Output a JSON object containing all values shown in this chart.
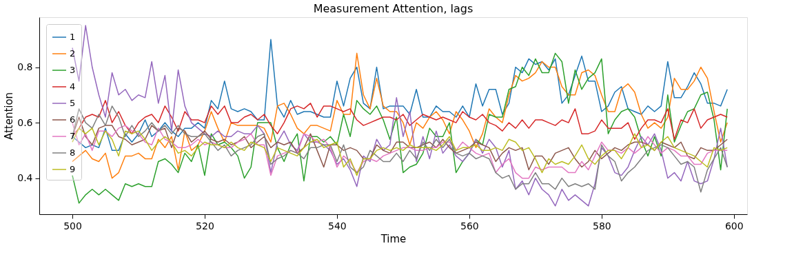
{
  "chart_data": {
    "type": "line",
    "title": "Measurement Attention, lags",
    "xlabel": "Time",
    "ylabel": "Attention",
    "x": [
      500,
      501,
      502,
      503,
      504,
      505,
      506,
      507,
      508,
      509,
      510,
      511,
      512,
      513,
      514,
      515,
      516,
      517,
      518,
      519,
      520,
      521,
      522,
      523,
      524,
      525,
      526,
      527,
      528,
      529,
      530,
      531,
      532,
      533,
      534,
      535,
      536,
      537,
      538,
      539,
      540,
      541,
      542,
      543,
      544,
      545,
      546,
      547,
      548,
      549,
      550,
      551,
      552,
      553,
      554,
      555,
      556,
      557,
      558,
      559,
      560,
      561,
      562,
      563,
      564,
      565,
      566,
      567,
      568,
      569,
      570,
      571,
      572,
      573,
      574,
      575,
      576,
      577,
      578,
      579,
      580,
      581,
      582,
      583,
      584,
      585,
      586,
      587,
      588,
      589,
      590,
      591,
      592,
      593,
      594,
      595,
      596,
      597,
      598,
      599
    ],
    "xlim": [
      495,
      602
    ],
    "xticks": [
      500,
      520,
      540,
      560,
      580,
      600
    ],
    "ylim": [
      0.27,
      0.98
    ],
    "yticks": [
      0.4,
      0.6,
      0.8
    ],
    "grid": false,
    "legend": "top left",
    "line_style": "solid",
    "marker": "none",
    "series": [
      {
        "name": "1",
        "color": "#1f77b4",
        "values": [
          0.55,
          0.53,
          0.51,
          0.52,
          0.51,
          0.58,
          0.5,
          0.5,
          0.56,
          0.53,
          0.56,
          0.61,
          0.55,
          0.57,
          0.6,
          0.57,
          0.55,
          0.58,
          0.58,
          0.6,
          0.58,
          0.68,
          0.65,
          0.75,
          0.65,
          0.64,
          0.65,
          0.64,
          0.61,
          0.61,
          0.9,
          0.66,
          0.62,
          0.68,
          0.63,
          0.64,
          0.64,
          0.63,
          0.62,
          0.62,
          0.75,
          0.66,
          0.76,
          0.8,
          0.67,
          0.65,
          0.8,
          0.65,
          0.66,
          0.66,
          0.66,
          0.63,
          0.72,
          0.62,
          0.62,
          0.66,
          0.64,
          0.64,
          0.62,
          0.66,
          0.62,
          0.74,
          0.66,
          0.72,
          0.72,
          0.63,
          0.67,
          0.8,
          0.78,
          0.83,
          0.81,
          0.82,
          0.79,
          0.83,
          0.67,
          0.7,
          0.77,
          0.84,
          0.75,
          0.75,
          0.64,
          0.66,
          0.71,
          0.73,
          0.65,
          0.64,
          0.63,
          0.66,
          0.64,
          0.66,
          0.82,
          0.69,
          0.69,
          0.73,
          0.78,
          0.74,
          0.67,
          0.67,
          0.66,
          0.72
        ]
      },
      {
        "name": "2",
        "color": "#ff7f0e",
        "values": [
          0.46,
          0.48,
          0.5,
          0.47,
          0.46,
          0.49,
          0.4,
          0.42,
          0.48,
          0.48,
          0.49,
          0.47,
          0.47,
          0.54,
          0.51,
          0.55,
          0.43,
          0.57,
          0.5,
          0.52,
          0.57,
          0.64,
          0.58,
          0.53,
          0.6,
          0.59,
          0.59,
          0.59,
          0.59,
          0.58,
          0.53,
          0.66,
          0.67,
          0.63,
          0.58,
          0.56,
          0.59,
          0.59,
          0.58,
          0.57,
          0.68,
          0.63,
          0.63,
          0.85,
          0.7,
          0.65,
          0.76,
          0.66,
          0.64,
          0.64,
          0.6,
          0.52,
          0.6,
          0.58,
          0.62,
          0.64,
          0.61,
          0.56,
          0.64,
          0.61,
          0.57,
          0.51,
          0.56,
          0.65,
          0.62,
          0.6,
          0.7,
          0.77,
          0.75,
          0.76,
          0.78,
          0.82,
          0.8,
          0.8,
          0.73,
          0.7,
          0.7,
          0.78,
          0.79,
          0.77,
          0.7,
          0.64,
          0.64,
          0.72,
          0.74,
          0.71,
          0.63,
          0.58,
          0.6,
          0.58,
          0.62,
          0.76,
          0.72,
          0.72,
          0.75,
          0.8,
          0.76,
          0.64,
          0.53,
          0.6
        ]
      },
      {
        "name": "3",
        "color": "#2ca02c",
        "values": [
          0.41,
          0.31,
          0.34,
          0.36,
          0.34,
          0.36,
          0.34,
          0.32,
          0.38,
          0.37,
          0.38,
          0.37,
          0.37,
          0.46,
          0.47,
          0.45,
          0.42,
          0.49,
          0.46,
          0.52,
          0.41,
          0.56,
          0.52,
          0.53,
          0.51,
          0.48,
          0.4,
          0.44,
          0.6,
          0.6,
          0.6,
          0.51,
          0.46,
          0.52,
          0.56,
          0.39,
          0.55,
          0.55,
          0.53,
          0.55,
          0.52,
          0.63,
          0.55,
          0.68,
          0.65,
          0.63,
          0.66,
          0.61,
          0.54,
          0.62,
          0.42,
          0.44,
          0.45,
          0.49,
          0.58,
          0.55,
          0.55,
          0.6,
          0.42,
          0.46,
          0.49,
          0.54,
          0.52,
          0.63,
          0.62,
          0.62,
          0.72,
          0.73,
          0.8,
          0.77,
          0.83,
          0.78,
          0.78,
          0.85,
          0.82,
          0.67,
          0.79,
          0.72,
          0.76,
          0.78,
          0.83,
          0.56,
          0.61,
          0.64,
          0.65,
          0.62,
          0.54,
          0.48,
          0.55,
          0.48,
          0.7,
          0.53,
          0.59,
          0.64,
          0.65,
          0.7,
          0.71,
          0.61,
          0.43,
          0.65
        ]
      },
      {
        "name": "4",
        "color": "#d62728",
        "values": [
          0.55,
          0.58,
          0.62,
          0.63,
          0.62,
          0.68,
          0.6,
          0.64,
          0.59,
          0.56,
          0.6,
          0.62,
          0.63,
          0.6,
          0.66,
          0.62,
          0.57,
          0.64,
          0.61,
          0.61,
          0.6,
          0.66,
          0.63,
          0.66,
          0.6,
          0.6,
          0.62,
          0.63,
          0.61,
          0.63,
          0.59,
          0.56,
          0.6,
          0.65,
          0.66,
          0.65,
          0.67,
          0.62,
          0.66,
          0.66,
          0.65,
          0.64,
          0.65,
          0.61,
          0.59,
          0.6,
          0.61,
          0.62,
          0.62,
          0.61,
          0.63,
          0.59,
          0.61,
          0.63,
          0.62,
          0.61,
          0.62,
          0.61,
          0.6,
          0.64,
          0.62,
          0.61,
          0.63,
          0.6,
          0.59,
          0.57,
          0.6,
          0.58,
          0.61,
          0.58,
          0.61,
          0.61,
          0.6,
          0.59,
          0.61,
          0.6,
          0.65,
          0.56,
          0.56,
          0.57,
          0.61,
          0.58,
          0.58,
          0.58,
          0.6,
          0.54,
          0.58,
          0.61,
          0.61,
          0.6,
          0.65,
          0.54,
          0.61,
          0.6,
          0.65,
          0.58,
          0.61,
          0.62,
          0.63,
          0.62
        ]
      },
      {
        "name": "5",
        "color": "#9467bd",
        "values": [
          0.87,
          0.75,
          0.95,
          0.8,
          0.7,
          0.62,
          0.78,
          0.7,
          0.72,
          0.68,
          0.7,
          0.69,
          0.82,
          0.67,
          0.77,
          0.57,
          0.79,
          0.66,
          0.6,
          0.58,
          0.56,
          0.55,
          0.57,
          0.55,
          0.55,
          0.57,
          0.56,
          0.56,
          0.59,
          0.56,
          0.42,
          0.53,
          0.57,
          0.52,
          0.5,
          0.56,
          0.53,
          0.53,
          0.52,
          0.5,
          0.45,
          0.47,
          0.43,
          0.37,
          0.48,
          0.46,
          0.54,
          0.5,
          0.52,
          0.69,
          0.55,
          0.64,
          0.46,
          0.55,
          0.47,
          0.57,
          0.49,
          0.52,
          0.48,
          0.46,
          0.49,
          0.54,
          0.49,
          0.54,
          0.51,
          0.44,
          0.5,
          0.36,
          0.39,
          0.34,
          0.4,
          0.36,
          0.34,
          0.3,
          0.36,
          0.32,
          0.34,
          0.32,
          0.3,
          0.38,
          0.51,
          0.48,
          0.42,
          0.41,
          0.44,
          0.5,
          0.55,
          0.52,
          0.56,
          0.5,
          0.4,
          0.42,
          0.39,
          0.46,
          0.39,
          0.38,
          0.39,
          0.47,
          0.58,
          0.44
        ]
      },
      {
        "name": "6",
        "color": "#8c564b",
        "values": [
          0.55,
          0.62,
          0.55,
          0.52,
          0.58,
          0.59,
          0.59,
          0.55,
          0.54,
          0.52,
          0.53,
          0.54,
          0.59,
          0.57,
          0.58,
          0.51,
          0.58,
          0.57,
          0.53,
          0.55,
          0.57,
          0.54,
          0.53,
          0.54,
          0.52,
          0.53,
          0.55,
          0.51,
          0.53,
          0.55,
          0.51,
          0.53,
          0.52,
          0.53,
          0.49,
          0.51,
          0.56,
          0.5,
          0.44,
          0.52,
          0.52,
          0.5,
          0.51,
          0.5,
          0.47,
          0.47,
          0.52,
          0.5,
          0.49,
          0.53,
          0.53,
          0.51,
          0.51,
          0.52,
          0.53,
          0.51,
          0.54,
          0.51,
          0.49,
          0.5,
          0.51,
          0.53,
          0.52,
          0.51,
          0.46,
          0.49,
          0.51,
          0.5,
          0.51,
          0.43,
          0.48,
          0.48,
          0.45,
          0.49,
          0.5,
          0.51,
          0.47,
          0.44,
          0.46,
          0.5,
          0.47,
          0.49,
          0.51,
          0.5,
          0.52,
          0.53,
          0.53,
          0.52,
          0.5,
          0.53,
          0.52,
          0.51,
          0.53,
          0.48,
          0.47,
          0.51,
          0.5,
          0.5,
          0.52,
          0.54
        ]
      },
      {
        "name": "7",
        "color": "#e377c2",
        "values": [
          0.6,
          0.52,
          0.56,
          0.5,
          0.57,
          0.57,
          0.55,
          0.58,
          0.59,
          0.57,
          0.56,
          0.53,
          0.52,
          0.58,
          0.54,
          0.53,
          0.51,
          0.51,
          0.52,
          0.54,
          0.52,
          0.53,
          0.52,
          0.51,
          0.51,
          0.53,
          0.54,
          0.56,
          0.52,
          0.52,
          0.41,
          0.48,
          0.49,
          0.5,
          0.49,
          0.56,
          0.55,
          0.53,
          0.54,
          0.51,
          0.44,
          0.48,
          0.46,
          0.42,
          0.46,
          0.47,
          0.46,
          0.48,
          0.49,
          0.5,
          0.51,
          0.51,
          0.5,
          0.5,
          0.51,
          0.51,
          0.53,
          0.53,
          0.5,
          0.53,
          0.51,
          0.49,
          0.48,
          0.49,
          0.42,
          0.45,
          0.47,
          0.42,
          0.4,
          0.4,
          0.44,
          0.43,
          0.44,
          0.44,
          0.44,
          0.42,
          0.42,
          0.46,
          0.43,
          0.48,
          0.53,
          0.5,
          0.5,
          0.49,
          0.51,
          0.49,
          0.51,
          0.55,
          0.52,
          0.49,
          0.51,
          0.5,
          0.48,
          0.48,
          0.45,
          0.45,
          0.49,
          0.5,
          0.5,
          0.5
        ]
      },
      {
        "name": "8",
        "color": "#7f7f7f",
        "values": [
          0.55,
          0.65,
          0.6,
          0.58,
          0.63,
          0.59,
          0.66,
          0.62,
          0.55,
          0.59,
          0.55,
          0.57,
          0.6,
          0.57,
          0.59,
          0.56,
          0.59,
          0.56,
          0.55,
          0.55,
          0.56,
          0.53,
          0.5,
          0.52,
          0.48,
          0.5,
          0.51,
          0.52,
          0.55,
          0.56,
          0.45,
          0.47,
          0.48,
          0.5,
          0.49,
          0.47,
          0.51,
          0.51,
          0.52,
          0.52,
          0.46,
          0.52,
          0.44,
          0.42,
          0.44,
          0.5,
          0.48,
          0.46,
          0.46,
          0.49,
          0.46,
          0.5,
          0.47,
          0.53,
          0.5,
          0.54,
          0.51,
          0.54,
          0.49,
          0.48,
          0.49,
          0.47,
          0.48,
          0.47,
          0.42,
          0.4,
          0.41,
          0.36,
          0.38,
          0.38,
          0.42,
          0.38,
          0.38,
          0.36,
          0.4,
          0.37,
          0.38,
          0.37,
          0.38,
          0.36,
          0.52,
          0.48,
          0.46,
          0.39,
          0.42,
          0.44,
          0.47,
          0.5,
          0.51,
          0.52,
          0.51,
          0.48,
          0.45,
          0.46,
          0.44,
          0.35,
          0.43,
          0.47,
          0.51,
          0.44
        ]
      },
      {
        "name": "9",
        "color": "#bcbd22",
        "values": [
          0.53,
          0.58,
          0.56,
          0.58,
          0.52,
          0.57,
          0.54,
          0.48,
          0.57,
          0.56,
          0.57,
          0.54,
          0.5,
          0.53,
          0.55,
          0.53,
          0.49,
          0.5,
          0.48,
          0.51,
          0.53,
          0.52,
          0.52,
          0.51,
          0.53,
          0.51,
          0.5,
          0.53,
          0.52,
          0.51,
          0.46,
          0.51,
          0.5,
          0.49,
          0.48,
          0.51,
          0.53,
          0.54,
          0.51,
          0.52,
          0.53,
          0.44,
          0.47,
          0.41,
          0.47,
          0.47,
          0.5,
          0.51,
          0.5,
          0.51,
          0.5,
          0.52,
          0.51,
          0.51,
          0.51,
          0.5,
          0.52,
          0.55,
          0.5,
          0.51,
          0.51,
          0.52,
          0.5,
          0.5,
          0.51,
          0.5,
          0.54,
          0.53,
          0.5,
          0.51,
          0.47,
          0.42,
          0.47,
          0.45,
          0.46,
          0.45,
          0.48,
          0.52,
          0.47,
          0.45,
          0.48,
          0.5,
          0.5,
          0.47,
          0.51,
          0.56,
          0.51,
          0.52,
          0.5,
          0.53,
          0.55,
          0.51,
          0.5,
          0.49,
          0.48,
          0.46,
          0.44,
          0.51,
          0.5,
          0.51
        ]
      }
    ]
  }
}
